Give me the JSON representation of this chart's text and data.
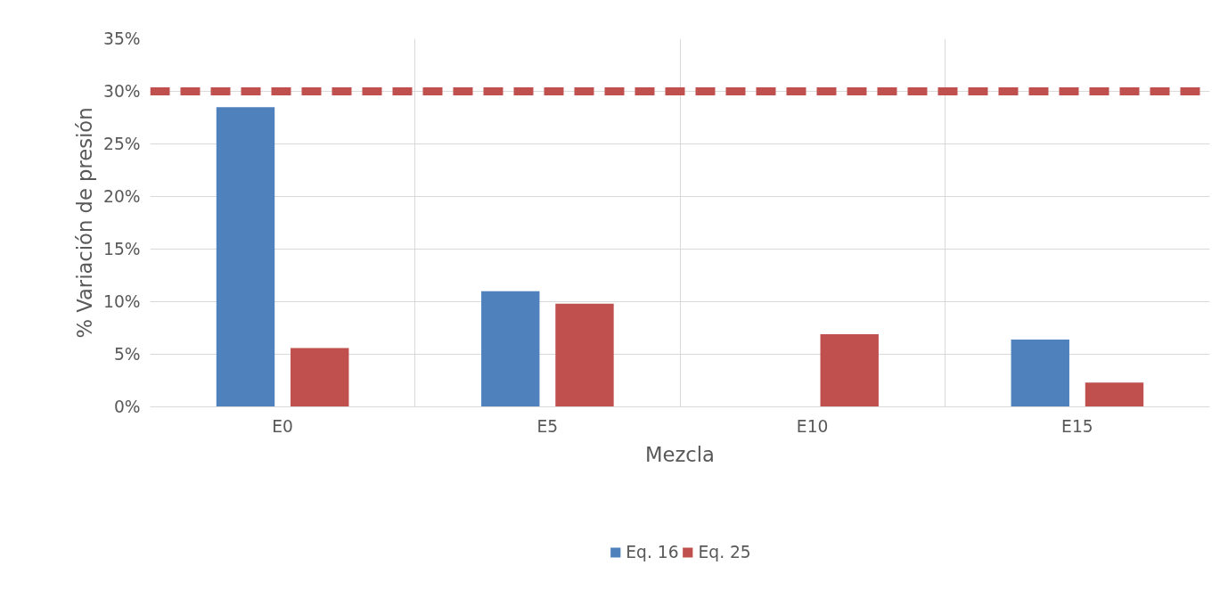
{
  "chart_data": {
    "type": "bar",
    "xlabel": "Mezcla",
    "ylabel": "% Variación de presión",
    "categories": [
      "E0",
      "E5",
      "E10",
      "E15"
    ],
    "series": [
      {
        "name": "Eq. 16",
        "color": "#4f81bd",
        "values": [
          28.5,
          11,
          0,
          6.4
        ]
      },
      {
        "name": "Eq. 25",
        "color": "#c0504d",
        "values": [
          5.6,
          9.8,
          6.9,
          2.3
        ]
      }
    ],
    "ylim": [
      0,
      35
    ],
    "yticks": [
      {
        "value": 0,
        "label": "0%"
      },
      {
        "value": 5,
        "label": "5%"
      },
      {
        "value": 10,
        "label": "10%"
      },
      {
        "value": 15,
        "label": "15%"
      },
      {
        "value": 20,
        "label": "20%"
      },
      {
        "value": 25,
        "label": "25%"
      },
      {
        "value": 30,
        "label": "30%"
      },
      {
        "value": 35,
        "label": "35%"
      }
    ],
    "ref_lines": [
      {
        "axis": "y",
        "value": 30,
        "color": "#c0504d",
        "line_style": "dashed"
      }
    ],
    "grid": true,
    "legend": "bottom"
  }
}
